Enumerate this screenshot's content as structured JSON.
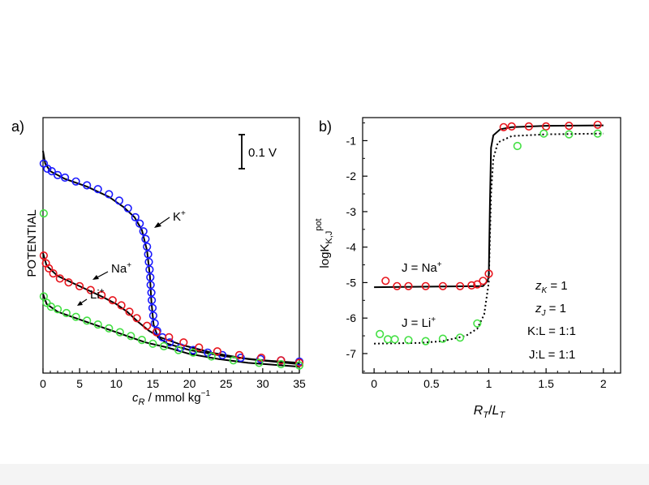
{
  "colors": {
    "K": "#1a1aff",
    "Na": "#e8141c",
    "Li": "#44e044",
    "line": "#000000"
  },
  "chart_data": [
    {
      "panel_label": "a)",
      "type": "line",
      "xlabel_main": "c",
      "xlabel_sub": "R",
      "xlabel_rest": " / mmol kg",
      "xlabel_sup": "−1",
      "ylabel": "POTENTIAL",
      "xlim": [
        0,
        35
      ],
      "ylim": [
        0,
        1
      ],
      "xticks": [
        "0",
        "5",
        "10",
        "15",
        "20",
        "25",
        "30",
        "35"
      ],
      "scale_bar_label": "0.1 V",
      "annotations": [
        {
          "base": "K",
          "sup": "+"
        },
        {
          "base": "Na",
          "sup": "+"
        },
        {
          "base": "Li",
          "sup": "+"
        }
      ],
      "series": [
        {
          "name": "K+",
          "curve": [
            [
              0,
              0.87
            ],
            [
              0.3,
              0.82
            ],
            [
              1,
              0.79
            ],
            [
              3,
              0.76
            ],
            [
              6,
              0.73
            ],
            [
              9,
              0.69
            ],
            [
              11,
              0.65
            ],
            [
              12.5,
              0.61
            ],
            [
              13.5,
              0.56
            ],
            [
              14.2,
              0.48
            ],
            [
              14.6,
              0.38
            ],
            [
              14.8,
              0.28
            ],
            [
              15.1,
              0.19
            ],
            [
              15.7,
              0.14
            ],
            [
              17,
              0.115
            ],
            [
              20,
              0.09
            ],
            [
              25,
              0.065
            ],
            [
              30,
              0.05
            ],
            [
              35,
              0.04
            ]
          ],
          "points": [
            [
              0.1,
              0.82
            ],
            [
              0.6,
              0.8
            ],
            [
              1.2,
              0.79
            ],
            [
              2,
              0.775
            ],
            [
              3,
              0.765
            ],
            [
              4.5,
              0.75
            ],
            [
              6,
              0.735
            ],
            [
              7.5,
              0.72
            ],
            [
              9,
              0.7
            ],
            [
              10.4,
              0.675
            ],
            [
              11.6,
              0.645
            ],
            [
              12.6,
              0.61
            ],
            [
              13.2,
              0.585
            ],
            [
              13.7,
              0.555
            ],
            [
              14.0,
              0.525
            ],
            [
              14.2,
              0.495
            ],
            [
              14.35,
              0.465
            ],
            [
              14.45,
              0.435
            ],
            [
              14.55,
              0.405
            ],
            [
              14.65,
              0.375
            ],
            [
              14.7,
              0.345
            ],
            [
              14.8,
              0.315
            ],
            [
              14.85,
              0.285
            ],
            [
              14.95,
              0.255
            ],
            [
              15.05,
              0.225
            ],
            [
              15.25,
              0.195
            ],
            [
              15.6,
              0.165
            ],
            [
              16.3,
              0.14
            ],
            [
              17.3,
              0.12
            ],
            [
              18.8,
              0.1
            ],
            [
              20.5,
              0.09
            ],
            [
              22.5,
              0.08
            ],
            [
              24.5,
              0.07
            ],
            [
              27,
              0.06
            ],
            [
              29.7,
              0.055
            ],
            [
              32.5,
              0.05
            ],
            [
              35,
              0.045
            ]
          ]
        },
        {
          "name": "Na+",
          "curve": [
            [
              0,
              0.47
            ],
            [
              0.5,
              0.42
            ],
            [
              2,
              0.38
            ],
            [
              5,
              0.34
            ],
            [
              8,
              0.3
            ],
            [
              10,
              0.27
            ],
            [
              11.5,
              0.24
            ],
            [
              13,
              0.2
            ],
            [
              14.5,
              0.165
            ],
            [
              16,
              0.14
            ],
            [
              19,
              0.11
            ],
            [
              23,
              0.08
            ],
            [
              28,
              0.055
            ],
            [
              35,
              0.035
            ]
          ],
          "points": [
            [
              0.1,
              0.46
            ],
            [
              0.4,
              0.43
            ],
            [
              0.8,
              0.41
            ],
            [
              1.4,
              0.39
            ],
            [
              2.3,
              0.37
            ],
            [
              3.5,
              0.355
            ],
            [
              5,
              0.34
            ],
            [
              6.5,
              0.325
            ],
            [
              8,
              0.305
            ],
            [
              9.5,
              0.285
            ],
            [
              10.7,
              0.265
            ],
            [
              11.8,
              0.24
            ],
            [
              12.8,
              0.215
            ],
            [
              14.2,
              0.185
            ],
            [
              15.5,
              0.16
            ],
            [
              17.2,
              0.14
            ],
            [
              19.2,
              0.12
            ],
            [
              21.3,
              0.1
            ],
            [
              23.8,
              0.085
            ],
            [
              26.8,
              0.07
            ],
            [
              29.8,
              0.06
            ],
            [
              32.5,
              0.05
            ],
            [
              35,
              0.04
            ]
          ]
        },
        {
          "name": "Li+",
          "curve": [
            [
              0,
              0.31
            ],
            [
              0.5,
              0.27
            ],
            [
              2,
              0.24
            ],
            [
              5,
              0.21
            ],
            [
              8,
              0.18
            ],
            [
              10,
              0.16
            ],
            [
              12,
              0.14
            ],
            [
              14,
              0.12
            ],
            [
              17,
              0.1
            ],
            [
              20,
              0.075
            ],
            [
              24,
              0.055
            ],
            [
              28,
              0.04
            ],
            [
              35,
              0.025
            ]
          ],
          "points": [
            [
              0.1,
              0.3
            ],
            [
              0.5,
              0.275
            ],
            [
              1.1,
              0.26
            ],
            [
              2,
              0.25
            ],
            [
              3.2,
              0.235
            ],
            [
              4.5,
              0.22
            ],
            [
              6,
              0.205
            ],
            [
              7.5,
              0.19
            ],
            [
              9,
              0.175
            ],
            [
              10.5,
              0.16
            ],
            [
              12,
              0.145
            ],
            [
              13.5,
              0.13
            ],
            [
              15,
              0.115
            ],
            [
              16.5,
              0.105
            ],
            [
              18.5,
              0.09
            ],
            [
              20.5,
              0.08
            ],
            [
              23,
              0.065
            ],
            [
              26,
              0.05
            ],
            [
              29.5,
              0.04
            ],
            [
              32.5,
              0.035
            ],
            [
              35,
              0.03
            ]
          ]
        },
        {
          "name": "Li+ (start)",
          "points": [
            [
              0.1,
              0.625
            ]
          ]
        }
      ]
    },
    {
      "panel_label": "b)",
      "type": "line",
      "xlabel_1": "R",
      "xlabel_1_sub": "T",
      "xlabel_mid": "/",
      "xlabel_2": "L",
      "xlabel_2_sub": "T",
      "ylabel_base": "logK",
      "ylabel_sub": "K,J",
      "ylabel_sup": "pot",
      "xlim": [
        -0.1,
        2.15
      ],
      "ylim": [
        -7.55,
        -0.35
      ],
      "xticks": [
        "0",
        "0.5",
        "1",
        "1.5",
        "2"
      ],
      "xtick_values": [
        0,
        0.5,
        1,
        1.5,
        2
      ],
      "yticks": [
        "-1",
        "-2",
        "-3",
        "-4",
        "-5",
        "-6",
        "-7"
      ],
      "ytick_values": [
        -1,
        -2,
        -3,
        -4,
        -5,
        -6,
        -7
      ],
      "annotations": {
        "na_label": {
          "text": "J = Na",
          "sup": "+"
        },
        "li_label": {
          "text": "J = Li",
          "sup": "+"
        },
        "zk": {
          "var": "z",
          "sub": "K",
          "rest": " = 1"
        },
        "zj": {
          "var": "z",
          "sub": "J",
          "rest": " = 1"
        },
        "kl": "K:L = 1:1",
        "jl": "J:L = 1:1"
      },
      "series": [
        {
          "name": "J = Na+",
          "line_style": "solid",
          "curve": [
            [
              0,
              -5.13
            ],
            [
              0.95,
              -5.1
            ],
            [
              0.99,
              -4.95
            ],
            [
              1.0,
              -4.8
            ],
            [
              1.01,
              -2.8
            ],
            [
              1.02,
              -1.2
            ],
            [
              1.04,
              -0.85
            ],
            [
              1.1,
              -0.68
            ],
            [
              1.2,
              -0.62
            ],
            [
              1.5,
              -0.58
            ],
            [
              2.0,
              -0.57
            ]
          ],
          "points": [
            [
              0.1,
              -4.95
            ],
            [
              0.2,
              -5.1
            ],
            [
              0.3,
              -5.1
            ],
            [
              0.45,
              -5.1
            ],
            [
              0.6,
              -5.1
            ],
            [
              0.75,
              -5.1
            ],
            [
              0.85,
              -5.08
            ],
            [
              0.9,
              -5.05
            ],
            [
              0.95,
              -4.95
            ],
            [
              1.0,
              -4.75
            ],
            [
              1.13,
              -0.62
            ],
            [
              1.2,
              -0.6
            ],
            [
              1.35,
              -0.6
            ],
            [
              1.5,
              -0.6
            ],
            [
              1.7,
              -0.58
            ],
            [
              1.95,
              -0.55
            ]
          ]
        },
        {
          "name": "J = Li+",
          "line_style": "dotted",
          "curve": [
            [
              0,
              -6.72
            ],
            [
              0.4,
              -6.7
            ],
            [
              0.6,
              -6.65
            ],
            [
              0.8,
              -6.5
            ],
            [
              0.9,
              -6.3
            ],
            [
              0.96,
              -5.9
            ],
            [
              1.0,
              -5.0
            ],
            [
              1.02,
              -2.5
            ],
            [
              1.04,
              -1.5
            ],
            [
              1.08,
              -1.05
            ],
            [
              1.2,
              -0.87
            ],
            [
              1.5,
              -0.82
            ],
            [
              2.0,
              -0.8
            ]
          ],
          "points": [
            [
              0.05,
              -6.45
            ],
            [
              0.12,
              -6.6
            ],
            [
              0.18,
              -6.6
            ],
            [
              0.3,
              -6.62
            ],
            [
              0.45,
              -6.65
            ],
            [
              0.6,
              -6.58
            ],
            [
              0.75,
              -6.55
            ],
            [
              0.9,
              -6.15
            ],
            [
              1.25,
              -1.15
            ],
            [
              1.48,
              -0.8
            ],
            [
              1.7,
              -0.82
            ],
            [
              1.95,
              -0.8
            ]
          ]
        }
      ]
    }
  ]
}
